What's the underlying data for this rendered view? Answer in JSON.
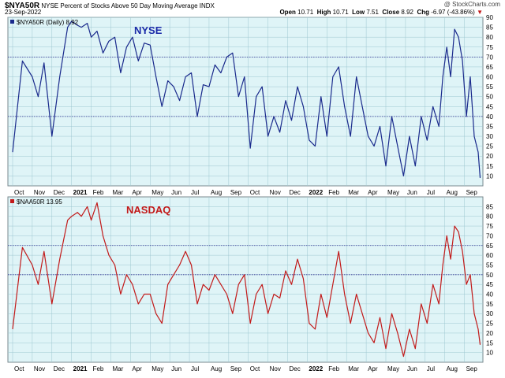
{
  "header": {
    "symbol": "$NYA50R",
    "description": "NYSE Percent of Stocks Above 50 Day Moving Average",
    "exchange": "INDX",
    "date": "23-Sep-2022",
    "brand": "@ StockCharts.com",
    "open_label": "Open",
    "open": "10.71",
    "high_label": "High",
    "high": "10.71",
    "low_label": "Low",
    "low": "7.51",
    "close_label": "Close",
    "close": "8.92",
    "chg_label": "Chg",
    "chg": "-6.97 (-43.86%)",
    "chg_arrow": "▼"
  },
  "colors": {
    "panel_bg": "#dff4f7",
    "grid": "#9ec7d0",
    "nyse_line": "#1a2a8c",
    "nasdaq_line": "#c21a1a",
    "ref_line": "#2a2a90"
  },
  "chart_data": [
    {
      "type": "line",
      "title": "NYSE",
      "legend": "$NYA50R (Daily) 8.92",
      "ylim": [
        5,
        90
      ],
      "yticks": [
        10,
        15,
        20,
        25,
        30,
        35,
        40,
        45,
        50,
        55,
        60,
        65,
        70,
        75,
        80,
        85,
        90
      ],
      "reference_lines": [
        70,
        40
      ],
      "xticks": [
        "Oct",
        "Nov",
        "Dec",
        "2021",
        "Feb",
        "Mar",
        "Apr",
        "May",
        "Jun",
        "Jul",
        "Aug",
        "Sep",
        "Oct",
        "Nov",
        "Dec",
        "2022",
        "Feb",
        "Mar",
        "Apr",
        "May",
        "Jun",
        "Jul",
        "Aug",
        "Sep"
      ],
      "x": [
        0,
        0.5,
        1.0,
        1.3,
        1.6,
        2.0,
        2.4,
        2.8,
        3.0,
        3.3,
        3.5,
        3.8,
        4.0,
        4.3,
        4.6,
        4.9,
        5.2,
        5.5,
        5.8,
        6.1,
        6.4,
        6.7,
        7.0,
        7.3,
        7.6,
        7.9,
        8.2,
        8.5,
        8.8,
        9.1,
        9.4,
        9.7,
        10.0,
        10.3,
        10.6,
        10.9,
        11.2,
        11.5,
        11.8,
        12.1,
        12.4,
        12.7,
        13.0,
        13.3,
        13.6,
        13.9,
        14.2,
        14.5,
        14.8,
        15.1,
        15.4,
        15.7,
        16.0,
        16.3,
        16.6,
        16.9,
        17.2,
        17.5,
        17.8,
        18.1,
        18.4,
        18.7,
        19.0,
        19.3,
        19.6,
        19.9,
        20.2,
        20.5,
        20.8,
        21.1,
        21.4,
        21.7,
        21.9,
        22.1,
        22.3,
        22.5,
        22.7,
        22.9,
        23.1,
        23.3,
        23.5,
        23.7,
        23.8
      ],
      "values": [
        22,
        68,
        60,
        50,
        67,
        30,
        60,
        85,
        88,
        86,
        85,
        87,
        80,
        83,
        72,
        78,
        80,
        62,
        75,
        80,
        68,
        77,
        76,
        60,
        45,
        58,
        55,
        48,
        60,
        62,
        40,
        56,
        55,
        66,
        62,
        70,
        72,
        50,
        60,
        24,
        50,
        55,
        30,
        40,
        32,
        48,
        38,
        55,
        45,
        28,
        25,
        50,
        30,
        60,
        65,
        45,
        30,
        60,
        45,
        30,
        25,
        35,
        15,
        40,
        25,
        10,
        30,
        15,
        40,
        28,
        45,
        35,
        60,
        75,
        60,
        84,
        80,
        68,
        40,
        60,
        30,
        22,
        9
      ]
    },
    {
      "type": "line",
      "title": "NASDAQ",
      "legend": "$NAA50R 13.95",
      "ylim": [
        5,
        90
      ],
      "yticks": [
        10,
        15,
        20,
        25,
        30,
        35,
        40,
        45,
        50,
        55,
        60,
        65,
        70,
        75,
        80,
        85
      ],
      "reference_lines": [
        65,
        50
      ],
      "xticks": [
        "Oct",
        "Nov",
        "Dec",
        "2021",
        "Feb",
        "Mar",
        "Apr",
        "May",
        "Jun",
        "Jul",
        "Aug",
        "Sep",
        "Oct",
        "Nov",
        "Dec",
        "2022",
        "Feb",
        "Mar",
        "Apr",
        "May",
        "Jun",
        "Jul",
        "Aug",
        "Sep"
      ],
      "x": [
        0,
        0.5,
        1.0,
        1.3,
        1.6,
        2.0,
        2.4,
        2.8,
        3.0,
        3.3,
        3.5,
        3.8,
        4.0,
        4.3,
        4.6,
        4.9,
        5.2,
        5.5,
        5.8,
        6.1,
        6.4,
        6.7,
        7.0,
        7.3,
        7.6,
        7.9,
        8.2,
        8.5,
        8.8,
        9.1,
        9.4,
        9.7,
        10.0,
        10.3,
        10.6,
        10.9,
        11.2,
        11.5,
        11.8,
        12.1,
        12.4,
        12.7,
        13.0,
        13.3,
        13.6,
        13.9,
        14.2,
        14.5,
        14.8,
        15.1,
        15.4,
        15.7,
        16.0,
        16.3,
        16.6,
        16.9,
        17.2,
        17.5,
        17.8,
        18.1,
        18.4,
        18.7,
        19.0,
        19.3,
        19.6,
        19.9,
        20.2,
        20.5,
        20.8,
        21.1,
        21.4,
        21.7,
        21.9,
        22.1,
        22.3,
        22.5,
        22.7,
        22.9,
        23.1,
        23.3,
        23.5,
        23.7,
        23.8
      ],
      "values": [
        22,
        64,
        55,
        45,
        62,
        35,
        58,
        78,
        80,
        82,
        80,
        85,
        78,
        87,
        70,
        60,
        55,
        40,
        50,
        45,
        35,
        40,
        40,
        30,
        25,
        45,
        50,
        55,
        62,
        55,
        35,
        45,
        42,
        50,
        45,
        40,
        30,
        45,
        50,
        25,
        40,
        45,
        30,
        40,
        38,
        52,
        45,
        58,
        48,
        25,
        22,
        40,
        28,
        45,
        62,
        40,
        25,
        40,
        30,
        20,
        15,
        28,
        12,
        30,
        20,
        8,
        22,
        12,
        35,
        25,
        45,
        35,
        55,
        70,
        58,
        75,
        72,
        62,
        45,
        50,
        30,
        22,
        14
      ]
    }
  ]
}
